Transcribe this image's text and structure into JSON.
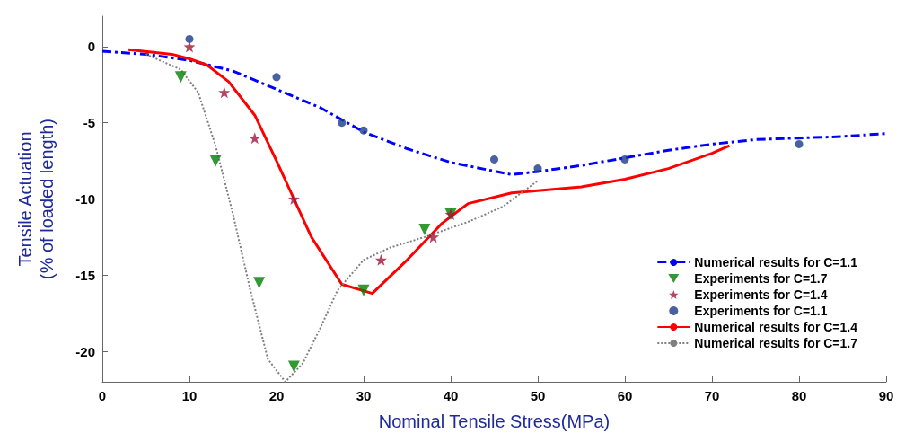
{
  "chart_data": {
    "type": "line",
    "xlabel": "Nominal Tensile Stress(MPa)",
    "ylabel": "Tensile Actuation\n(% of loaded length)",
    "xlim": [
      0,
      90
    ],
    "xticks": [
      0,
      10,
      20,
      30,
      40,
      50,
      60,
      70,
      80,
      90
    ],
    "ylim": [
      -22,
      2
    ],
    "yticks": [
      -20,
      -15,
      -10,
      -5,
      0
    ],
    "grid": false,
    "legend": "bottom right",
    "series": [
      {
        "name": "Numerical results for C=1.1",
        "line_style": "dashdot",
        "color": "#0000ff",
        "x": [
          0,
          5,
          10,
          15,
          20,
          25,
          30,
          35,
          40,
          47,
          50,
          55,
          60,
          65,
          70,
          75,
          80,
          85,
          90
        ],
        "values": [
          -0.3,
          -0.5,
          -0.9,
          -1.6,
          -2.8,
          -4,
          -5.6,
          -6.7,
          -7.6,
          -8.4,
          -8.2,
          -7.8,
          -7.3,
          -6.8,
          -6.4,
          -6.1,
          -6,
          -5.9,
          -5.7
        ]
      },
      {
        "name": "Experiments for C=1.7",
        "type": "scatter",
        "marker": "triangle",
        "color": "#008000",
        "x": [
          9,
          13,
          18,
          22,
          30,
          37,
          40
        ],
        "values": [
          -2,
          -7.5,
          -15.5,
          -21,
          -16,
          -12,
          -11
        ]
      },
      {
        "name": "Experiments for C=1.4",
        "type": "scatter",
        "marker": "star",
        "color": "#a0163a",
        "x": [
          10,
          14,
          17.5,
          22,
          32,
          38,
          40
        ],
        "values": [
          0,
          -3,
          -6,
          -10,
          -14,
          -12.5,
          -11
        ]
      },
      {
        "name": "Experiments for C=1.1",
        "type": "scatter",
        "marker": "circle",
        "color": "#1a3a8a",
        "x": [
          10,
          20,
          27.5,
          30,
          45,
          50,
          60,
          80
        ],
        "values": [
          0.5,
          -2,
          -5,
          -5.5,
          -7.4,
          -8,
          -7.4,
          -6.4
        ]
      },
      {
        "name": "Numerical results for C=1.4",
        "line_style": "solid",
        "color": "#ff0000",
        "x": [
          3,
          8,
          10,
          12,
          14.5,
          17.5,
          20,
          22,
          24,
          27.5,
          31,
          35,
          39,
          42,
          47,
          55,
          60,
          65,
          70,
          72
        ],
        "values": [
          -0.2,
          -0.5,
          -0.8,
          -1.2,
          -2.3,
          -4.5,
          -7.5,
          -10,
          -12.5,
          -15.6,
          -16.2,
          -14,
          -11.6,
          -10.3,
          -9.6,
          -9.2,
          -8.7,
          -8,
          -7,
          -6.5
        ]
      },
      {
        "name": "Numerical results for C=1.7",
        "line_style": "dotted",
        "color": "#808080",
        "x": [
          5,
          9,
          11,
          13,
          15,
          17,
          19,
          21,
          23,
          25,
          27,
          30,
          33,
          37,
          42,
          46,
          50
        ],
        "values": [
          -0.5,
          -1.5,
          -3,
          -6.5,
          -11,
          -16,
          -20.5,
          -22,
          -20.8,
          -18.5,
          -16,
          -14,
          -13.2,
          -12.5,
          -11.5,
          -10.5,
          -8.8
        ]
      }
    ]
  }
}
